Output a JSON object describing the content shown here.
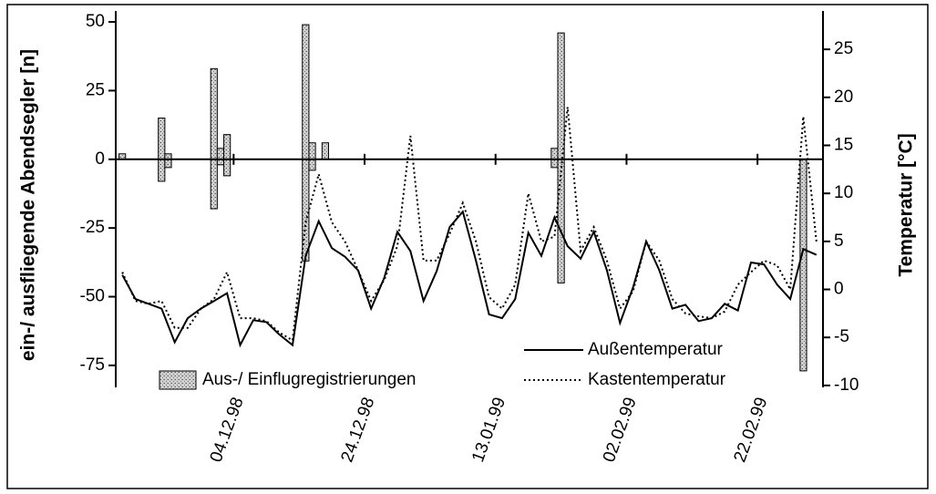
{
  "chart_data": {
    "type": "combo",
    "ylabel": "ein-/ ausfliegende Abendsegler [n]",
    "y2label": "Temperatur [°C]",
    "xlim": [
      "1998-11-16",
      "1999-03-04"
    ],
    "xticks": [
      {
        "value": "1998-12-04",
        "label": "04.12.98"
      },
      {
        "value": "1998-12-24",
        "label": "24.12.98"
      },
      {
        "value": "1999-01-13",
        "label": "13.01.99"
      },
      {
        "value": "1999-02-02",
        "label": "02.02.99"
      },
      {
        "value": "1999-02-22",
        "label": "22.02.99"
      }
    ],
    "ylim": [
      -83,
      54
    ],
    "yticks": [
      50,
      25,
      0,
      -25,
      -50,
      -75
    ],
    "y2lim": [
      -10.2,
      29
    ],
    "y2ticks": [
      25,
      20,
      15,
      10,
      5,
      0,
      -5,
      -10
    ],
    "x": [
      "1998-11-17",
      "1998-11-19",
      "1998-11-21",
      "1998-11-23",
      "1998-11-25",
      "1998-11-27",
      "1998-11-29",
      "1998-12-01",
      "1998-12-03",
      "1998-12-05",
      "1998-12-07",
      "1998-12-09",
      "1998-12-11",
      "1998-12-13",
      "1998-12-15",
      "1998-12-17",
      "1998-12-19",
      "1998-12-21",
      "1998-12-23",
      "1998-12-25",
      "1998-12-27",
      "1998-12-29",
      "1998-12-31",
      "1999-01-02",
      "1999-01-04",
      "1999-01-06",
      "1999-01-08",
      "1999-01-10",
      "1999-01-12",
      "1999-01-14",
      "1999-01-16",
      "1999-01-18",
      "1999-01-20",
      "1999-01-22",
      "1999-01-24",
      "1999-01-26",
      "1999-01-28",
      "1999-01-30",
      "1999-02-01",
      "1999-02-03",
      "1999-02-05",
      "1999-02-07",
      "1999-02-09",
      "1999-02-11",
      "1999-02-13",
      "1999-02-15",
      "1999-02-17",
      "1999-02-19",
      "1999-02-21",
      "1999-02-23",
      "1999-02-25",
      "1999-02-27",
      "1999-03-01",
      "1999-03-03"
    ],
    "series": [
      {
        "name": "Aus-/ Einflugregistrierungen",
        "type": "bar",
        "color": "#bdbdbd",
        "x": [
          "1998-11-17",
          "1998-11-23",
          "1998-11-24",
          "1998-12-01",
          "1998-12-02",
          "1998-12-03",
          "1998-12-15",
          "1998-12-16",
          "1998-12-18",
          "1999-01-22",
          "1999-01-23",
          "1999-03-01"
        ],
        "values": [
          2,
          15,
          2,
          33,
          4,
          9,
          49,
          6,
          6,
          4,
          46,
          0
        ],
        "values_in": [
          0,
          -8,
          -3,
          -18,
          -2,
          -6,
          -37,
          -4,
          0,
          -3,
          -45,
          -77
        ]
      },
      {
        "name": "Außentemperatur",
        "type": "line",
        "axis": "y2",
        "color": "#000000",
        "dash": "solid",
        "values": [
          1.5,
          -1.0,
          -1.5,
          -2.0,
          -5.5,
          -3.0,
          -2.0,
          -1.2,
          -0.4,
          -5.8,
          -3.2,
          -3.4,
          -4.7,
          -5.8,
          3.5,
          7.1,
          4.3,
          3.4,
          2.0,
          -2.0,
          1.2,
          6.0,
          4.0,
          -1.2,
          1.9,
          6.5,
          8.1,
          3.0,
          -2.6,
          -3.0,
          -1.0,
          5.9,
          3.5,
          7.5,
          4.5,
          3.2,
          6.0,
          2.0,
          -3.5,
          0.2,
          5.0,
          2.0,
          -2.0,
          -1.6,
          -3.3,
          -3.0,
          -1.5,
          -2.2,
          2.8,
          2.6,
          0.5,
          -1.0,
          4.2,
          3.6
        ]
      },
      {
        "name": "Kastentemperatur",
        "type": "line",
        "axis": "y2",
        "color": "#000000",
        "dash": "dotted",
        "values": [
          1.8,
          -1.2,
          -1.5,
          -1.2,
          -4.0,
          -4.0,
          -2.0,
          -1.0,
          1.8,
          -3.0,
          -3.0,
          -3.3,
          -4.5,
          -5.3,
          7.0,
          12.0,
          7.0,
          5.0,
          2.0,
          -1.2,
          1.0,
          4.5,
          16.0,
          3.0,
          3.0,
          5.8,
          9.0,
          5.0,
          -0.8,
          -2.0,
          0.5,
          10.0,
          5.0,
          5.5,
          19.0,
          4.0,
          6.5,
          3.0,
          -2.0,
          -0.2,
          5.0,
          3.0,
          -1.0,
          -2.5,
          -2.8,
          -3.0,
          -2.3,
          0.5,
          1.8,
          3.0,
          2.5,
          0.0,
          18.0,
          5.0
        ]
      }
    ]
  }
}
